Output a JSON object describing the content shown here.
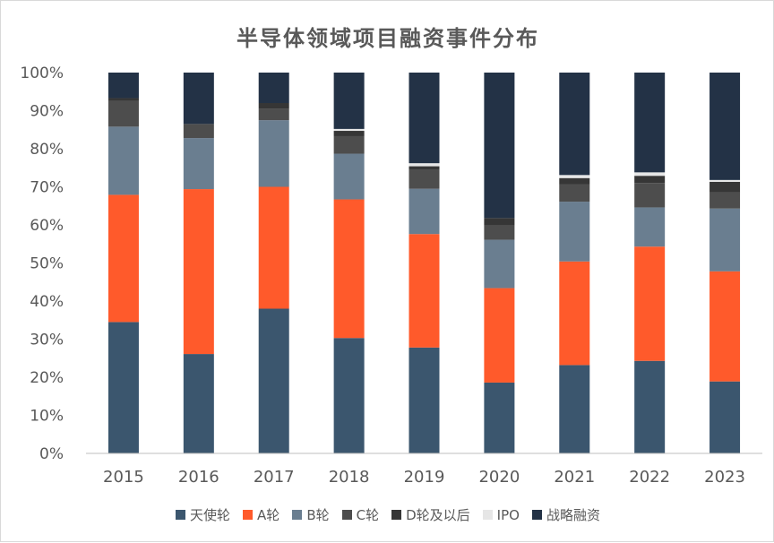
{
  "chart_data": {
    "type": "bar",
    "stacked": true,
    "title": "半导体领域项目融资事件分布",
    "xlabel": "",
    "ylabel": "",
    "ylim": [
      0,
      100
    ],
    "y_ticks": [
      "0%",
      "10%",
      "20%",
      "30%",
      "40%",
      "50%",
      "60%",
      "70%",
      "80%",
      "90%",
      "100%"
    ],
    "categories": [
      "2015",
      "2016",
      "2017",
      "2018",
      "2019",
      "2020",
      "2021",
      "2022",
      "2023"
    ],
    "legend_position": "bottom",
    "grid": false,
    "series": [
      {
        "name": "天使轮",
        "color": "#3b566e",
        "values": [
          34.5,
          26.1,
          38.0,
          30.3,
          27.8,
          18.6,
          23.2,
          24.3,
          18.9
        ]
      },
      {
        "name": "A轮",
        "color": "#ff5a2b",
        "values": [
          33.4,
          43.3,
          32.0,
          36.4,
          29.8,
          24.8,
          27.2,
          30.0,
          28.9
        ]
      },
      {
        "name": "B轮",
        "color": "#6a7e90",
        "values": [
          17.9,
          13.4,
          17.5,
          12.0,
          11.9,
          12.7,
          15.7,
          10.3,
          16.5
        ]
      },
      {
        "name": "C轮",
        "color": "#4d4d4d",
        "values": [
          6.8,
          3.7,
          3.0,
          4.6,
          4.9,
          3.7,
          4.6,
          6.4,
          4.2
        ]
      },
      {
        "name": "D轮及以后",
        "color": "#363636",
        "values": [
          0.7,
          0.0,
          1.5,
          1.4,
          1.0,
          2.0,
          1.6,
          1.9,
          2.8
        ]
      },
      {
        "name": "IPO",
        "color": "#e6e6e6",
        "values": [
          0.0,
          0.0,
          0.0,
          0.5,
          0.8,
          0.0,
          0.8,
          0.9,
          0.5
        ]
      },
      {
        "name": "战略融资",
        "color": "#233246",
        "values": [
          6.7,
          13.5,
          8.0,
          14.8,
          23.8,
          38.2,
          26.9,
          26.2,
          28.2
        ]
      }
    ]
  },
  "colors": {
    "axis_text": "#595959",
    "axis_line": "#bfbfbf"
  }
}
